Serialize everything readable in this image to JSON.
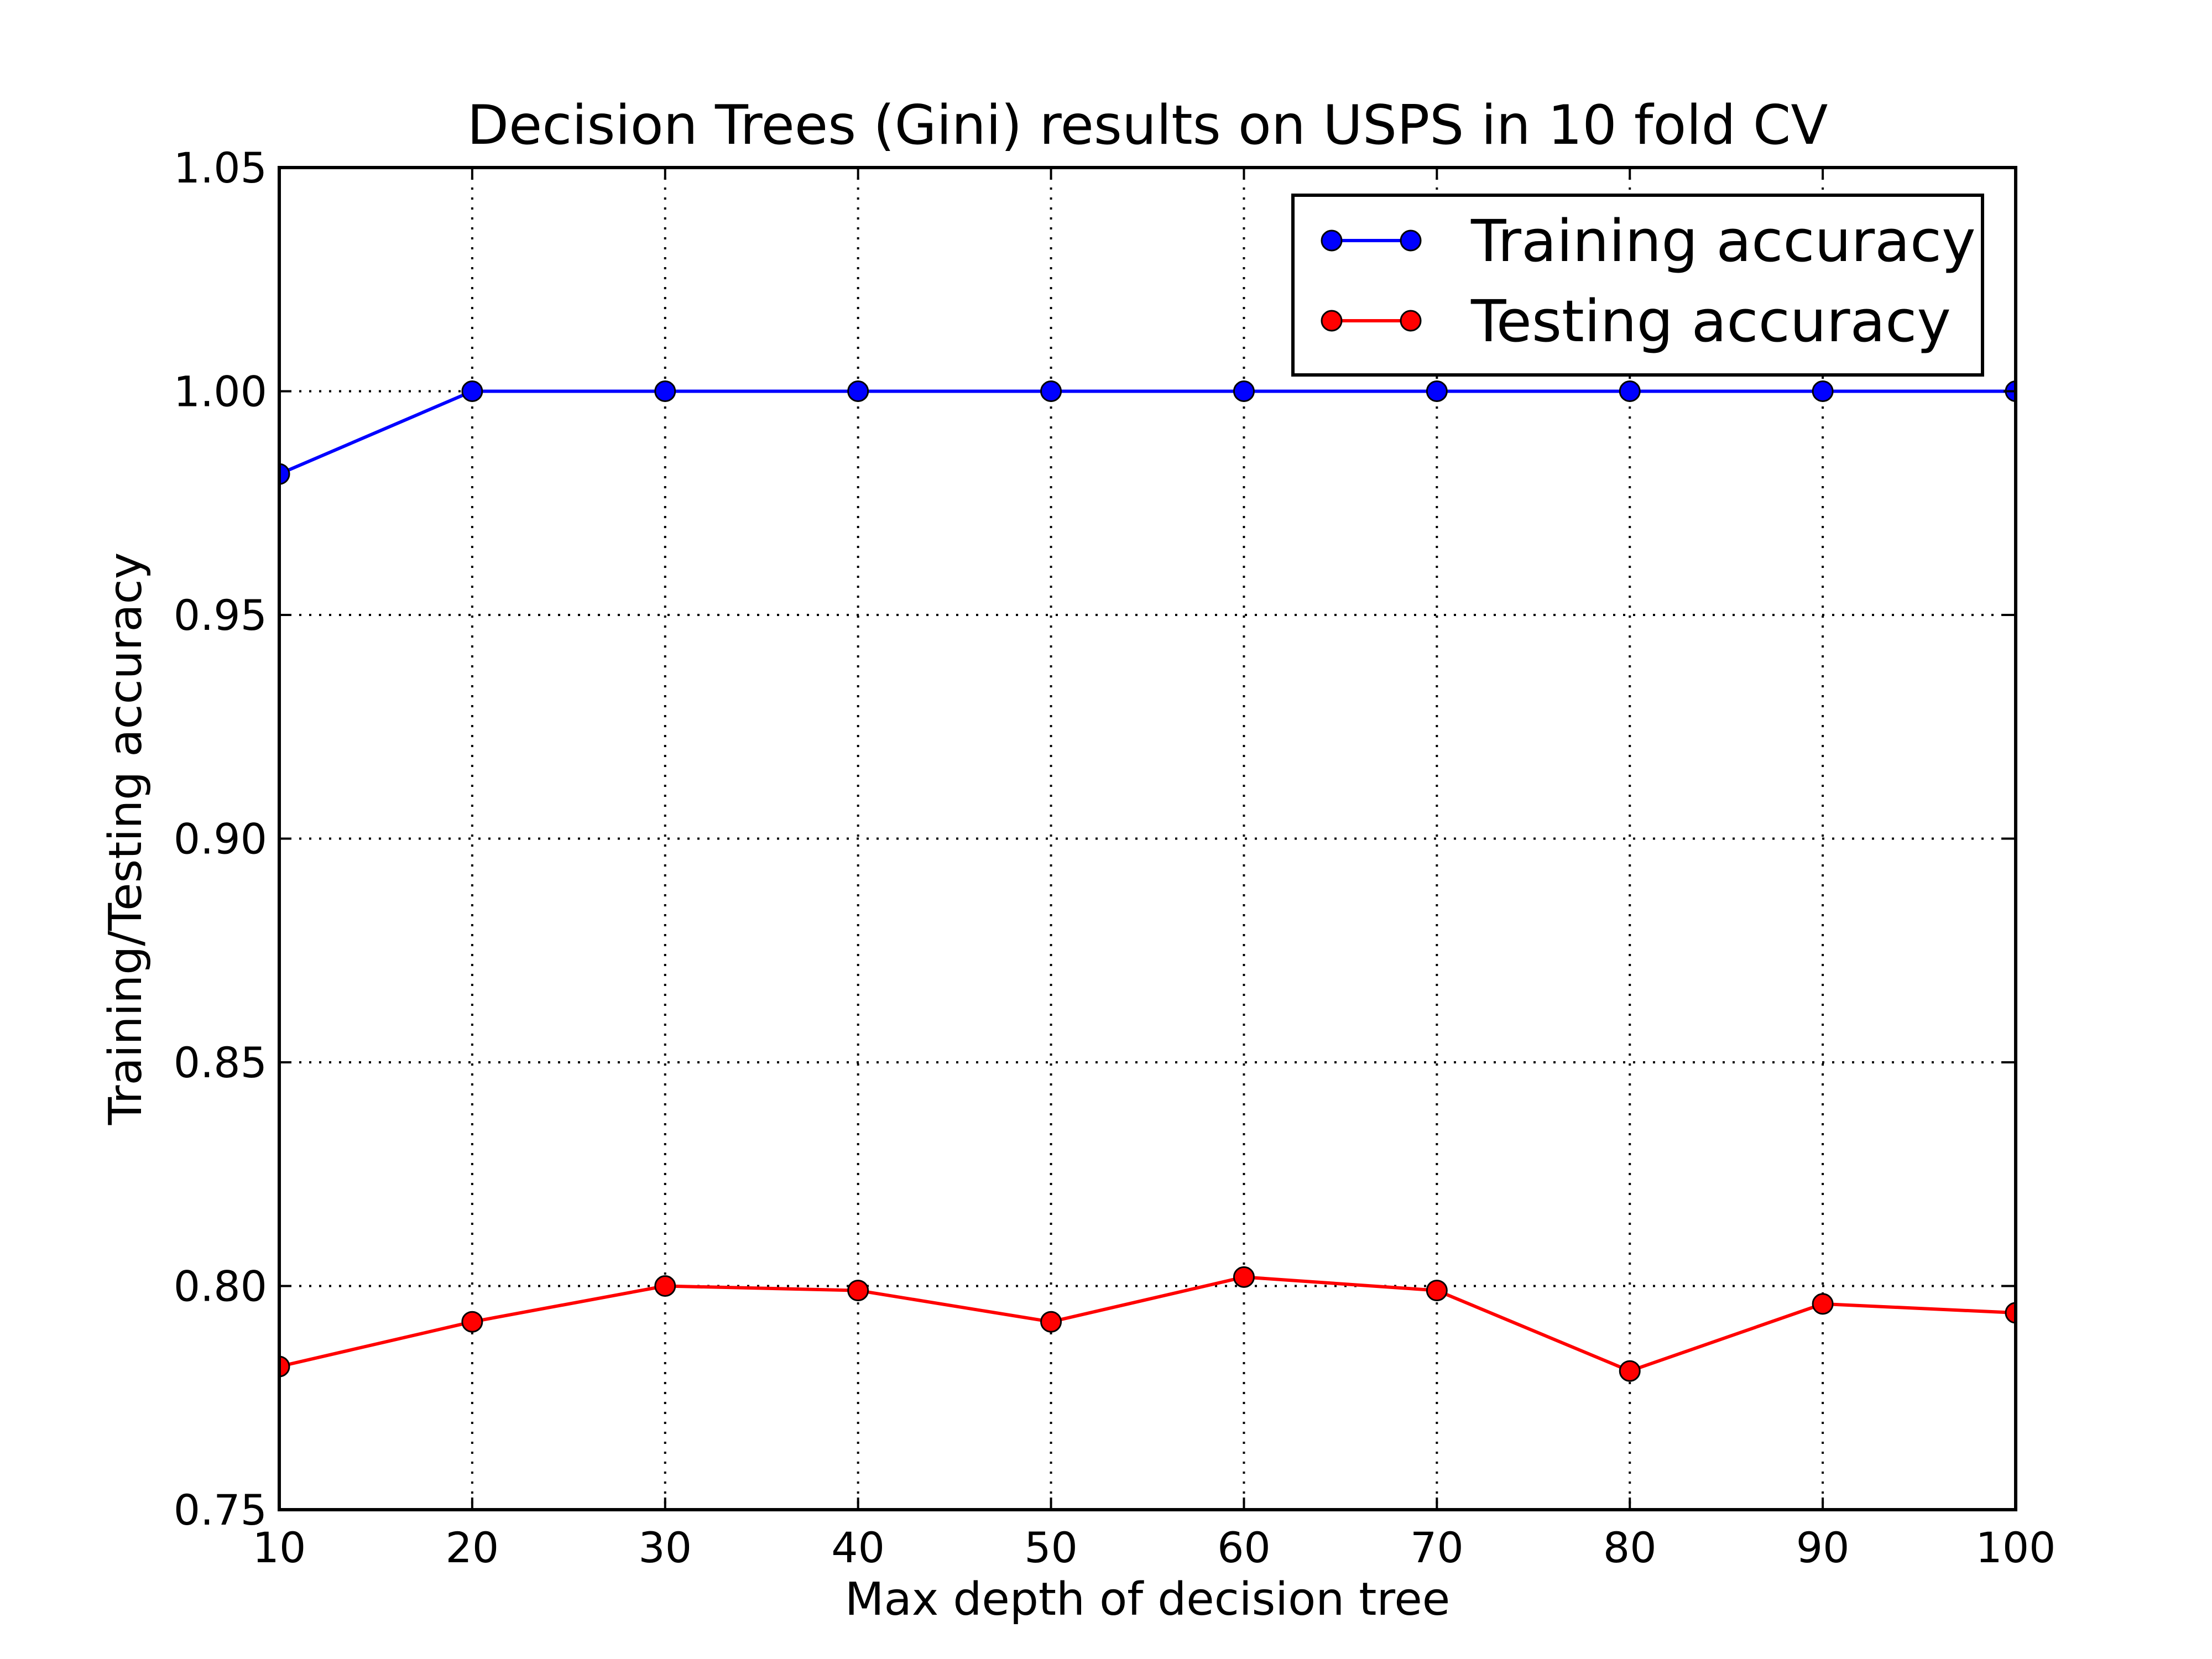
{
  "chart_data": {
    "type": "line",
    "title": "Decision Trees (Gini) results on USPS in 10 fold CV",
    "xlabel": "Max depth of decision tree",
    "ylabel": "Training/Testing accuracy",
    "x": [
      10,
      20,
      30,
      40,
      50,
      60,
      70,
      80,
      90,
      100
    ],
    "xlim": [
      10,
      100
    ],
    "ylim": [
      0.75,
      1.05
    ],
    "xticks": [
      10,
      20,
      30,
      40,
      50,
      60,
      70,
      80,
      90,
      100
    ],
    "xtick_labels": [
      "10",
      "20",
      "30",
      "40",
      "50",
      "60",
      "70",
      "80",
      "90",
      "100"
    ],
    "yticks": [
      0.75,
      0.8,
      0.85,
      0.9,
      0.95,
      1.0,
      1.05
    ],
    "ytick_labels": [
      "0.75",
      "0.80",
      "0.85",
      "0.90",
      "0.95",
      "1.00",
      "1.05"
    ],
    "grid": true,
    "legend_position": "top-right",
    "series": [
      {
        "name": "Training accuracy",
        "color": "#0000ff",
        "values": [
          0.9815,
          1.0,
          1.0,
          1.0,
          1.0,
          1.0,
          1.0,
          1.0,
          1.0,
          1.0
        ]
      },
      {
        "name": "Testing accuracy",
        "color": "#ff0000",
        "values": [
          0.782,
          0.792,
          0.8,
          0.799,
          0.792,
          0.802,
          0.799,
          0.781,
          0.796,
          0.794
        ]
      }
    ]
  }
}
